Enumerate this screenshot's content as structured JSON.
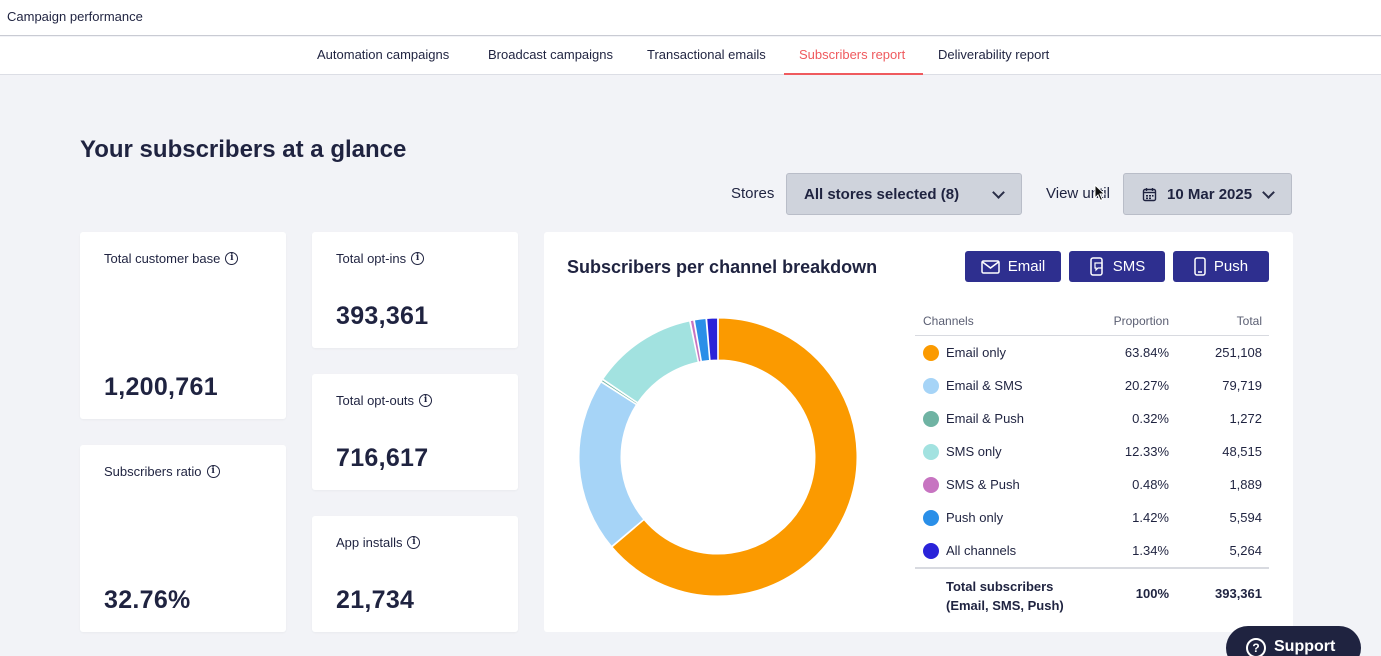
{
  "header": {
    "title": "Campaign performance"
  },
  "tabs": [
    {
      "label": "Automation campaigns"
    },
    {
      "label": "Broadcast campaigns"
    },
    {
      "label": "Transactional emails"
    },
    {
      "label": "Subscribers report",
      "active": true
    },
    {
      "label": "Deliverability report"
    }
  ],
  "page": {
    "title": "Your subscribers at a glance"
  },
  "filters": {
    "stores_label": "Stores",
    "stores_value": "All stores selected (8)",
    "view_until_label": "View until",
    "date_value": "10 Mar 2025"
  },
  "kpis": {
    "total_customer_base": {
      "label": "Total customer base",
      "value": "1,200,761"
    },
    "subscribers_ratio": {
      "label": "Subscribers ratio",
      "value": "32.76%"
    },
    "total_opt_ins": {
      "label": "Total opt-ins",
      "value": "393,361"
    },
    "total_opt_outs": {
      "label": "Total opt-outs",
      "value": "716,617"
    },
    "app_installs": {
      "label": "App installs",
      "value": "21,734"
    }
  },
  "breakdown": {
    "title": "Subscribers per channel breakdown",
    "buttons": {
      "email": "Email",
      "sms": "SMS",
      "push": "Push"
    },
    "table_headers": {
      "channels": "Channels",
      "proportion": "Proportion",
      "total": "Total"
    },
    "total_row": {
      "label_line1": "Total subscribers",
      "label_line2": "(Email, SMS, Push)",
      "proportion": "100%",
      "total": "393,361"
    }
  },
  "chart_data": {
    "type": "pie",
    "variant": "donut",
    "categories": [
      "Email only",
      "Email & SMS",
      "Email & Push",
      "SMS only",
      "SMS & Push",
      "Push only",
      "All channels"
    ],
    "values": [
      63.84,
      20.27,
      0.32,
      12.33,
      0.48,
      1.42,
      1.34
    ],
    "proportions_text": [
      "63.84%",
      "20.27%",
      "0.32%",
      "12.33%",
      "0.48%",
      "1.42%",
      "1.34%"
    ],
    "totals_text": [
      "251,108",
      "79,719",
      "1,272",
      "48,515",
      "1,889",
      "5,594",
      "5,264"
    ],
    "colors": [
      "#fb9a00",
      "#a6d4f7",
      "#6fb3a3",
      "#a2e2e0",
      "#c774c1",
      "#2a8fe8",
      "#2a23d9"
    ]
  },
  "support": {
    "label": "Support"
  }
}
